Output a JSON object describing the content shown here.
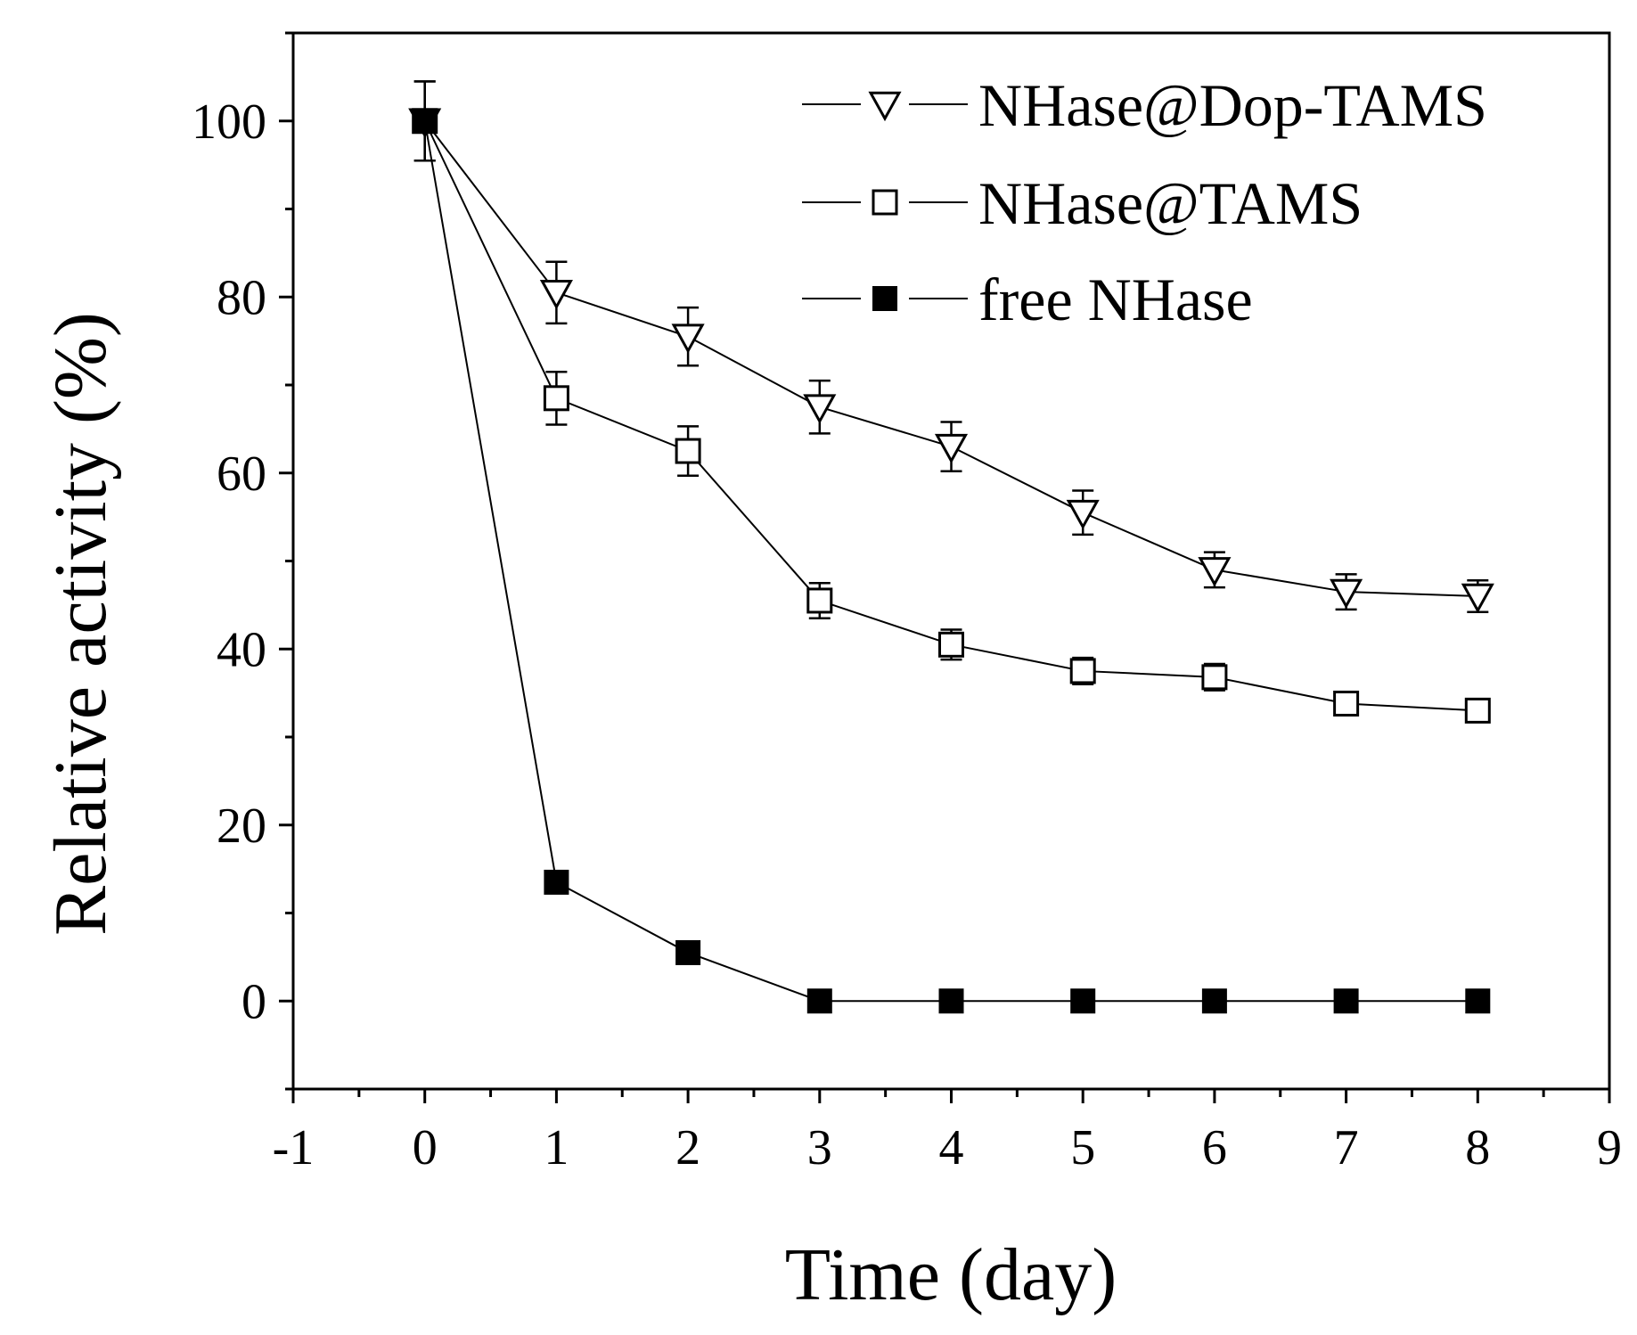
{
  "chart_data": {
    "type": "line",
    "title": "",
    "xlabel": "Time (day)",
    "ylabel": "Relative activity (%)",
    "xlim": [
      -1,
      9
    ],
    "ylim": [
      -10,
      110
    ],
    "xticks": [
      "-1",
      "0",
      "1",
      "2",
      "3",
      "4",
      "5",
      "6",
      "7",
      "8",
      "9"
    ],
    "yticks": [
      "0",
      "20",
      "40",
      "60",
      "80",
      "100"
    ],
    "x": [
      0,
      1,
      2,
      3,
      4,
      5,
      6,
      7,
      8
    ],
    "legend_position": "top-right",
    "series": [
      {
        "name": "NHase@Dop-TAMS",
        "marker": "triangle-down-open",
        "values": [
          100,
          80.5,
          75.5,
          67.5,
          63,
          55.5,
          49,
          46.5,
          46
        ],
        "errors": [
          4.5,
          3.5,
          3.3,
          3.0,
          2.8,
          2.5,
          2.0,
          2.0,
          1.8
        ]
      },
      {
        "name": "NHase@TAMS",
        "marker": "square-open",
        "values": [
          100,
          68.5,
          62.5,
          45.5,
          40.5,
          37.5,
          36.8,
          33.8,
          33
        ],
        "errors": [
          4.5,
          3.0,
          2.8,
          2.0,
          1.7,
          1.5,
          1.5,
          1.2,
          1.2
        ]
      },
      {
        "name": "free NHase",
        "marker": "square-filled",
        "values": [
          100,
          13.5,
          5.5,
          0,
          0,
          0,
          0,
          0,
          0
        ],
        "errors": [
          0,
          0,
          0,
          0,
          0,
          0,
          0,
          0,
          0
        ]
      }
    ]
  }
}
